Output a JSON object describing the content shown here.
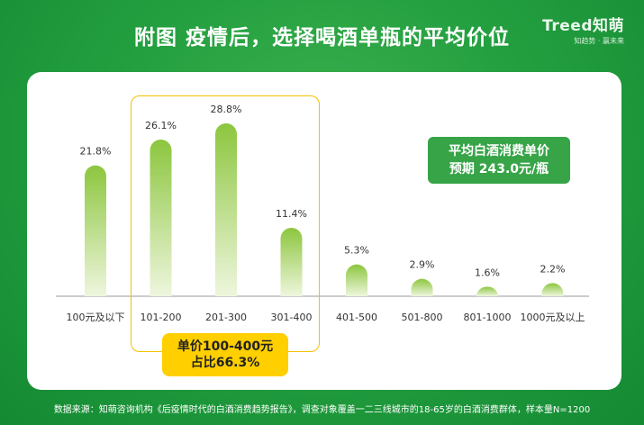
{
  "header": {
    "title": "附图  疫情后，选择喝酒单瓶的平均价位",
    "brand_name": "Treed知萌",
    "brand_slogan": "知趋势 · 赢未来"
  },
  "callouts": {
    "range_line1": "单价100-400元",
    "range_line2": "占比66.3%",
    "avg_line1": "平均白酒消费单价",
    "avg_line2": "预期 243.0元/瓶"
  },
  "footer": {
    "source": "数据来源：知萌咨询机构《后疫情时代的白酒消费趋势报告》，调查对象覆盖一二三线城市的18-65岁的白酒消费群体，样本量N=1200"
  },
  "colors": {
    "bar_top": "#8cc63e",
    "bar_bottom": "#eef6dd",
    "highlight": "#f2c200"
  },
  "chart_data": {
    "type": "bar",
    "title": "疫情后，选择喝酒单瓶的平均价位",
    "categories": [
      "100元及以下",
      "101-200",
      "201-300",
      "301-400",
      "401-500",
      "501-800",
      "801-1000",
      "1000元及以上"
    ],
    "values": [
      21.8,
      26.1,
      28.8,
      11.4,
      5.3,
      2.9,
      1.6,
      2.2
    ],
    "value_labels": [
      "21.8%",
      "26.1%",
      "28.8%",
      "11.4%",
      "5.3%",
      "2.9%",
      "1.6%",
      "2.2%"
    ],
    "unit": "%",
    "xlabel": "",
    "ylabel": "",
    "ylim": [
      0,
      30
    ],
    "grid": false,
    "legend": "none",
    "highlight_categories": [
      "101-200",
      "201-300",
      "301-400"
    ]
  }
}
